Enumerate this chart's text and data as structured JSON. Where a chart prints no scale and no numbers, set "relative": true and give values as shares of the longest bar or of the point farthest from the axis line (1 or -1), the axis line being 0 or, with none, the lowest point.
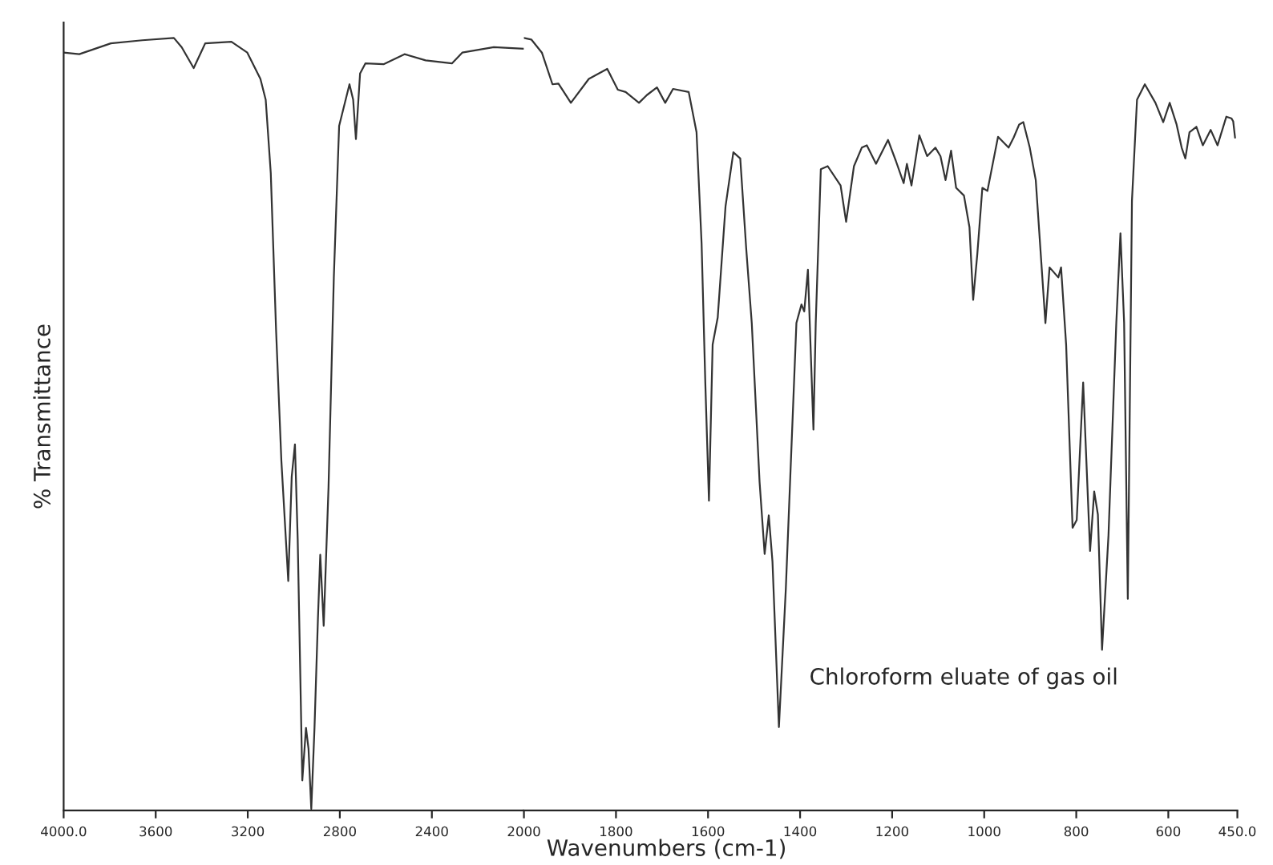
{
  "chart_data": [
    {
      "type": "line",
      "relative": true,
      "ylabel": "% Transmittance",
      "xlim": [
        4000,
        2000
      ],
      "xticks": [
        {
          "value": 4000,
          "label": "4000.0"
        },
        3600,
        3200,
        2800,
        2400,
        2000
      ],
      "tick_labels": "x",
      "marker": "none",
      "line_style": "solid",
      "series": [
        {
          "color": "#333333",
          "x": [
            4000,
            3932,
            3795,
            3658,
            3521,
            3487,
            3435,
            3385,
            3271,
            3202,
            3145,
            3122,
            3100,
            3077,
            3054,
            3024,
            3009,
            2995,
            2983,
            2963,
            2947,
            2936,
            2924,
            2910,
            2895,
            2885,
            2870,
            2849,
            2826,
            2803,
            2758,
            2742,
            2730,
            2712,
            2689,
            2610,
            2519,
            2427,
            2313,
            2268,
            2131,
            2000
          ],
          "values": [
            0.981,
            0.979,
            0.993,
            0.997,
            1.0,
            0.988,
            0.961,
            0.993,
            0.995,
            0.981,
            0.947,
            0.92,
            0.825,
            0.622,
            0.453,
            0.297,
            0.432,
            0.474,
            0.351,
            0.039,
            0.107,
            0.08,
            0.002,
            0.107,
            0.249,
            0.331,
            0.239,
            0.419,
            0.69,
            0.886,
            0.94,
            0.92,
            0.869,
            0.954,
            0.967,
            0.966,
            0.979,
            0.971,
            0.967,
            0.981,
            0.988,
            0.986
          ]
        }
      ]
    },
    {
      "type": "line",
      "relative": true,
      "xlabel": "Wavenumbers (cm-1)",
      "annotations": [
        "Chloroform eluate of gas oil"
      ],
      "xlim": [
        2000,
        450
      ],
      "xticks": [
        1800,
        1600,
        1400,
        1200,
        1000,
        800,
        600,
        {
          "value": 450,
          "label": "450.0"
        }
      ],
      "tick_labels": "x",
      "marker": "none",
      "line_style": "solid",
      "series": [
        {
          "color": "#333333",
          "x": [
            2000,
            1984,
            1961,
            1938,
            1925,
            1898,
            1859,
            1819,
            1796,
            1779,
            1750,
            1733,
            1711,
            1693,
            1676,
            1642,
            1625,
            1614,
            1606,
            1598,
            1590,
            1579,
            1562,
            1545,
            1530,
            1517,
            1505,
            1488,
            1477,
            1468,
            1460,
            1446,
            1431,
            1408,
            1397,
            1391,
            1383,
            1371,
            1366,
            1355,
            1340,
            1312,
            1300,
            1283,
            1266,
            1255,
            1235,
            1209,
            1192,
            1175,
            1168,
            1158,
            1141,
            1124,
            1106,
            1095,
            1084,
            1072,
            1061,
            1044,
            1032,
            1024,
            1015,
            1004,
            993,
            970,
            947,
            936,
            924,
            915,
            901,
            888,
            867,
            858,
            839,
            833,
            822,
            808,
            799,
            785,
            770,
            761,
            753,
            744,
            730,
            713,
            704,
            696,
            688,
            679,
            668,
            651,
            628,
            611,
            597,
            582,
            571,
            563,
            554,
            539,
            525,
            508,
            493,
            474,
            463,
            459,
            455
          ],
          "values": [
            1.0,
            0.998,
            0.981,
            0.94,
            0.941,
            0.916,
            0.947,
            0.96,
            0.933,
            0.93,
            0.916,
            0.926,
            0.936,
            0.916,
            0.934,
            0.93,
            0.878,
            0.734,
            0.555,
            0.401,
            0.603,
            0.638,
            0.782,
            0.852,
            0.844,
            0.727,
            0.631,
            0.425,
            0.332,
            0.382,
            0.322,
            0.108,
            0.287,
            0.631,
            0.655,
            0.646,
            0.7,
            0.493,
            0.631,
            0.83,
            0.834,
            0.809,
            0.762,
            0.834,
            0.858,
            0.861,
            0.837,
            0.868,
            0.841,
            0.812,
            0.837,
            0.809,
            0.874,
            0.847,
            0.858,
            0.847,
            0.816,
            0.854,
            0.806,
            0.796,
            0.755,
            0.661,
            0.72,
            0.806,
            0.802,
            0.872,
            0.858,
            0.871,
            0.888,
            0.891,
            0.858,
            0.816,
            0.631,
            0.703,
            0.69,
            0.703,
            0.603,
            0.366,
            0.376,
            0.554,
            0.336,
            0.413,
            0.383,
            0.208,
            0.356,
            0.631,
            0.747,
            0.631,
            0.274,
            0.789,
            0.92,
            0.94,
            0.916,
            0.891,
            0.916,
            0.888,
            0.858,
            0.844,
            0.878,
            0.885,
            0.861,
            0.881,
            0.861,
            0.898,
            0.896,
            0.892,
            0.871
          ]
        }
      ]
    }
  ]
}
